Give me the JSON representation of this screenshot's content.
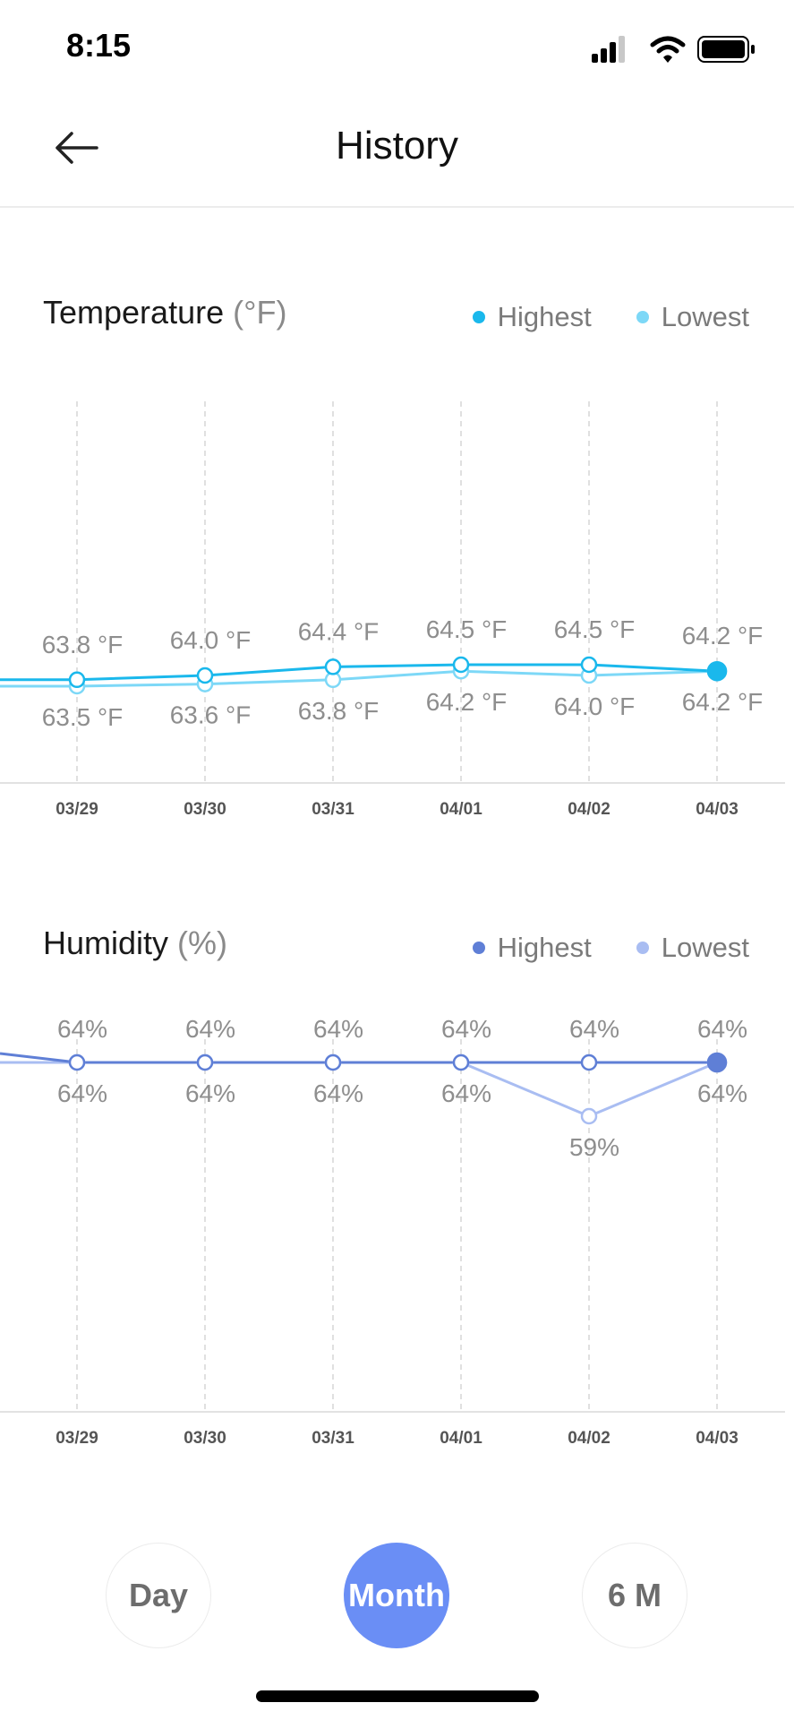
{
  "status_bar": {
    "time": "8:15"
  },
  "header": {
    "title": "History"
  },
  "colors": {
    "temp_high": "#1ab8ec",
    "temp_low": "#7dd8f7",
    "hum_high": "#5f7fd6",
    "hum_low": "#a9bdf2",
    "accent": "#6a8ef5"
  },
  "temperature": {
    "title": "Temperature",
    "unit": "(°F)",
    "legend": {
      "high": "Highest",
      "low": "Lowest"
    },
    "chart_data": {
      "type": "line",
      "categories": [
        "03/29",
        "03/30",
        "03/31",
        "04/01",
        "04/02",
        "04/03"
      ],
      "series": [
        {
          "name": "Highest",
          "values": [
            63.8,
            64.0,
            64.4,
            64.5,
            64.5,
            64.2
          ],
          "labels": [
            "63.8 °F",
            "64.0 °F",
            "64.4 °F",
            "64.5 °F",
            "64.5 °F",
            "64.2 °F"
          ]
        },
        {
          "name": "Lowest",
          "values": [
            63.5,
            63.6,
            63.8,
            64.2,
            64.0,
            64.2
          ],
          "labels": [
            "63.5 °F",
            "63.6 °F",
            "63.8 °F",
            "64.2 °F",
            "64.0 °F",
            "64.2 °F"
          ]
        }
      ]
    }
  },
  "humidity": {
    "title": "Humidity",
    "unit": "(%)",
    "legend": {
      "high": "Highest",
      "low": "Lowest"
    },
    "chart_data": {
      "type": "line",
      "categories": [
        "03/29",
        "03/30",
        "03/31",
        "04/01",
        "04/02",
        "04/03"
      ],
      "series": [
        {
          "name": "Highest",
          "values": [
            64,
            64,
            64,
            64,
            64,
            64
          ],
          "labels": [
            "64%",
            "64%",
            "64%",
            "64%",
            "64%",
            "64%"
          ]
        },
        {
          "name": "Lowest",
          "values": [
            64,
            64,
            64,
            64,
            59,
            64
          ],
          "labels": [
            "64%",
            "64%",
            "64%",
            "64%",
            "59%",
            "64%"
          ]
        }
      ]
    }
  },
  "range_buttons": [
    {
      "label": "Day",
      "active": false
    },
    {
      "label": "Month",
      "active": true
    },
    {
      "label": "6 M",
      "active": false
    }
  ]
}
